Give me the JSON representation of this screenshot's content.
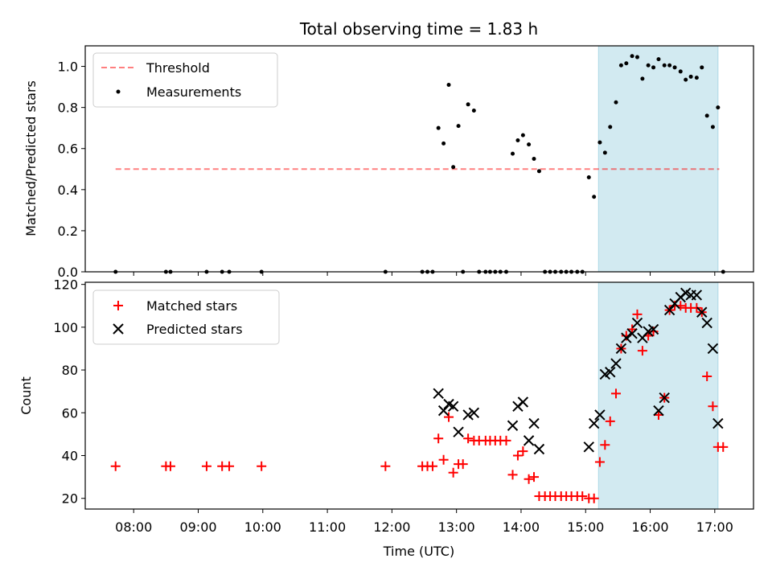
{
  "chart_data": {
    "title": "Total observing time = 1.83 h",
    "xlabel": "Time (UTC)",
    "x_tick_labels": [
      "08:00",
      "09:00",
      "10:00",
      "11:00",
      "12:00",
      "13:00",
      "14:00",
      "15:00",
      "16:00",
      "17:00"
    ],
    "x_ticks_hours": [
      8,
      9,
      10,
      11,
      12,
      13,
      14,
      15,
      16,
      17
    ],
    "xlim_hours": [
      7.25,
      17.6
    ],
    "highlight_span_hours": [
      15.2,
      17.05
    ],
    "highlight_color": "#add8e6",
    "panels": [
      {
        "type": "scatter",
        "ylabel": "Matched/Predicted stars",
        "ylim": [
          0,
          1.1
        ],
        "y_ticks": [
          0.0,
          0.2,
          0.4,
          0.6,
          0.8,
          1.0
        ],
        "y_tick_labels": [
          "0.0",
          "0.2",
          "0.4",
          "0.6",
          "0.8",
          "1.0"
        ],
        "legend_position": "top-left",
        "threshold": {
          "name": "Threshold",
          "value": 0.5,
          "x_range_hours": [
            7.72,
            17.07
          ],
          "color": "#ff0000",
          "style": "dashed"
        },
        "series": [
          {
            "name": "Measurements",
            "marker": "dot",
            "color": "#000000",
            "points": [
              [
                7.72,
                0
              ],
              [
                8.5,
                0
              ],
              [
                8.57,
                0
              ],
              [
                9.13,
                0
              ],
              [
                9.37,
                0
              ],
              [
                9.48,
                0
              ],
              [
                9.98,
                0
              ],
              [
                11.9,
                0
              ],
              [
                12.47,
                0
              ],
              [
                12.55,
                0
              ],
              [
                12.63,
                0
              ],
              [
                12.72,
                0.7
              ],
              [
                12.8,
                0.625
              ],
              [
                12.88,
                0.91
              ],
              [
                12.95,
                0.51
              ],
              [
                13.03,
                0.71
              ],
              [
                13.1,
                0
              ],
              [
                13.18,
                0.815
              ],
              [
                13.27,
                0.785
              ],
              [
                13.35,
                0
              ],
              [
                13.45,
                0
              ],
              [
                13.52,
                0
              ],
              [
                13.6,
                0
              ],
              [
                13.68,
                0
              ],
              [
                13.77,
                0
              ],
              [
                13.87,
                0.575
              ],
              [
                13.95,
                0.64
              ],
              [
                14.03,
                0.665
              ],
              [
                14.12,
                0.62
              ],
              [
                14.2,
                0.55
              ],
              [
                14.28,
                0.49
              ],
              [
                14.37,
                0
              ],
              [
                14.45,
                0
              ],
              [
                14.53,
                0
              ],
              [
                14.62,
                0
              ],
              [
                14.7,
                0
              ],
              [
                14.78,
                0
              ],
              [
                14.87,
                0
              ],
              [
                14.95,
                0
              ],
              [
                15.05,
                0.46
              ],
              [
                15.13,
                0.365
              ],
              [
                15.22,
                0.63
              ],
              [
                15.3,
                0.58
              ],
              [
                15.38,
                0.705
              ],
              [
                15.47,
                0.825
              ],
              [
                15.55,
                1.005
              ],
              [
                15.63,
                1.015
              ],
              [
                15.72,
                1.05
              ],
              [
                15.8,
                1.045
              ],
              [
                15.88,
                0.94
              ],
              [
                15.97,
                1.005
              ],
              [
                16.05,
                0.995
              ],
              [
                16.13,
                1.035
              ],
              [
                16.22,
                1.005
              ],
              [
                16.3,
                1.005
              ],
              [
                16.38,
                0.995
              ],
              [
                16.47,
                0.975
              ],
              [
                16.55,
                0.935
              ],
              [
                16.63,
                0.95
              ],
              [
                16.72,
                0.945
              ],
              [
                16.8,
                0.995
              ],
              [
                16.88,
                0.76
              ],
              [
                16.97,
                0.705
              ],
              [
                17.05,
                0.8
              ],
              [
                17.13,
                0
              ]
            ]
          }
        ]
      },
      {
        "type": "scatter",
        "ylabel": "Count",
        "ylim": [
          15,
          121
        ],
        "y_ticks": [
          20,
          40,
          60,
          80,
          100,
          120
        ],
        "y_tick_labels": [
          "20",
          "40",
          "60",
          "80",
          "100",
          "120"
        ],
        "legend_position": "top-left",
        "series": [
          {
            "name": "Matched stars",
            "marker": "plus",
            "color": "#ff0000",
            "points": [
              [
                7.72,
                35
              ],
              [
                8.5,
                35
              ],
              [
                8.57,
                35
              ],
              [
                9.13,
                35
              ],
              [
                9.37,
                35
              ],
              [
                9.48,
                35
              ],
              [
                9.98,
                35
              ],
              [
                11.9,
                35
              ],
              [
                12.47,
                35
              ],
              [
                12.55,
                35
              ],
              [
                12.63,
                35
              ],
              [
                12.72,
                48
              ],
              [
                12.8,
                38
              ],
              [
                12.88,
                58
              ],
              [
                12.95,
                32
              ],
              [
                13.03,
                36
              ],
              [
                13.1,
                36
              ],
              [
                13.18,
                48
              ],
              [
                13.27,
                47
              ],
              [
                13.35,
                47
              ],
              [
                13.45,
                47
              ],
              [
                13.52,
                47
              ],
              [
                13.6,
                47
              ],
              [
                13.68,
                47
              ],
              [
                13.77,
                47
              ],
              [
                13.87,
                31
              ],
              [
                13.95,
                40
              ],
              [
                14.03,
                42
              ],
              [
                14.12,
                29
              ],
              [
                14.2,
                30
              ],
              [
                14.28,
                21
              ],
              [
                14.37,
                21
              ],
              [
                14.45,
                21
              ],
              [
                14.53,
                21
              ],
              [
                14.62,
                21
              ],
              [
                14.7,
                21
              ],
              [
                14.78,
                21
              ],
              [
                14.87,
                21
              ],
              [
                14.95,
                21
              ],
              [
                15.05,
                20
              ],
              [
                15.13,
                20
              ],
              [
                15.22,
                37
              ],
              [
                15.3,
                45
              ],
              [
                15.38,
                56
              ],
              [
                15.47,
                69
              ],
              [
                15.55,
                90
              ],
              [
                15.63,
                96
              ],
              [
                15.72,
                99
              ],
              [
                15.8,
                106
              ],
              [
                15.88,
                89
              ],
              [
                15.97,
                96
              ],
              [
                16.05,
                98
              ],
              [
                16.13,
                59
              ],
              [
                16.22,
                67
              ],
              [
                16.3,
                108
              ],
              [
                16.38,
                110
              ],
              [
                16.47,
                110
              ],
              [
                16.55,
                109
              ],
              [
                16.63,
                109
              ],
              [
                16.72,
                109
              ],
              [
                16.8,
                107
              ],
              [
                16.88,
                77
              ],
              [
                16.97,
                63
              ],
              [
                17.05,
                44
              ],
              [
                17.13,
                44
              ]
            ]
          },
          {
            "name": "Predicted stars",
            "marker": "x",
            "color": "#000000",
            "points": [
              [
                12.72,
                69
              ],
              [
                12.8,
                61
              ],
              [
                12.88,
                64
              ],
              [
                12.95,
                63
              ],
              [
                13.03,
                51
              ],
              [
                13.18,
                59
              ],
              [
                13.27,
                60
              ],
              [
                13.87,
                54
              ],
              [
                13.95,
                63
              ],
              [
                14.03,
                65
              ],
              [
                14.12,
                47
              ],
              [
                14.2,
                55
              ],
              [
                14.28,
                43
              ],
              [
                15.05,
                44
              ],
              [
                15.13,
                55
              ],
              [
                15.22,
                59
              ],
              [
                15.3,
                78
              ],
              [
                15.38,
                79
              ],
              [
                15.47,
                83
              ],
              [
                15.55,
                90
              ],
              [
                15.63,
                95
              ],
              [
                15.72,
                97
              ],
              [
                15.8,
                102
              ],
              [
                15.88,
                95
              ],
              [
                15.97,
                98
              ],
              [
                16.05,
                99
              ],
              [
                16.13,
                61
              ],
              [
                16.22,
                67
              ],
              [
                16.3,
                108
              ],
              [
                16.38,
                111
              ],
              [
                16.47,
                114
              ],
              [
                16.55,
                116
              ],
              [
                16.63,
                115
              ],
              [
                16.72,
                115
              ],
              [
                16.8,
                107
              ],
              [
                16.88,
                102
              ],
              [
                16.97,
                90
              ],
              [
                17.05,
                55
              ]
            ]
          }
        ]
      }
    ]
  }
}
